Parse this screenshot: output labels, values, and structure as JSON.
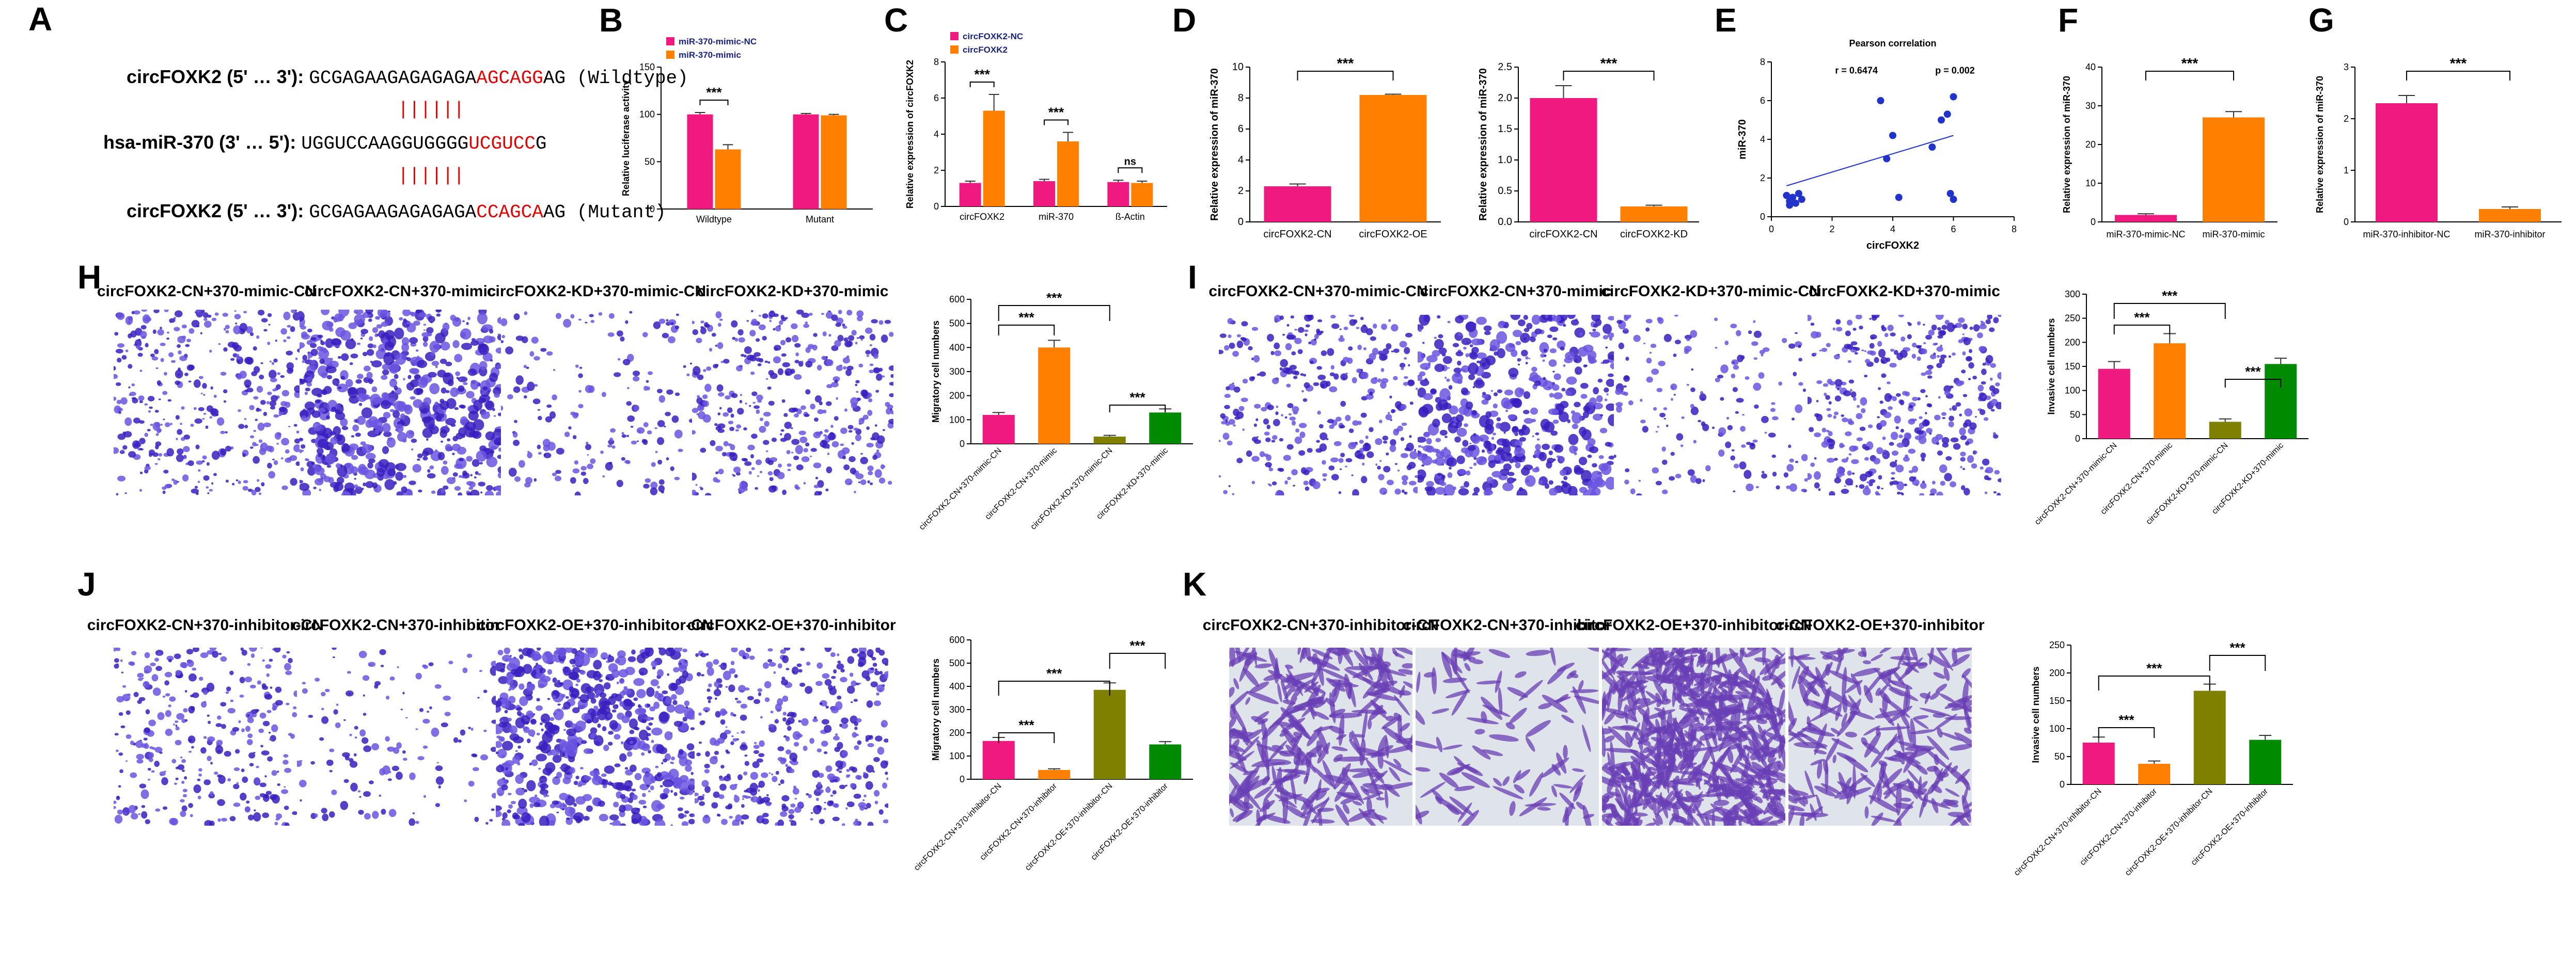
{
  "panel_letters": [
    "A",
    "B",
    "C",
    "D",
    "E",
    "F",
    "G",
    "H",
    "I",
    "J",
    "K"
  ],
  "panelA": {
    "line1_prefix": "circFOXK2 (5' … 3'): ",
    "line1_seq_a": "GCGAGAAGAGAGAGA",
    "line1_seq_hl": "AGCAGG",
    "line1_seq_b": "AG (Wildtype)",
    "pairs1": "||||||",
    "line2_prefix": "hsa-miR-370 (3' … 5'): ",
    "line2_seq_a": "UGGUCCAAGGUGGGG",
    "line2_seq_hl": "UCGUCC",
    "line2_seq_b": "G",
    "pairs2": "||||||",
    "line3_prefix": "circFOXK2 (5' … 3'): ",
    "line3_seq_a": "GCGAGAAGAGAGAGA",
    "line3_seq_hl": "CCAGCA",
    "line3_seq_b": "AG (Mutant)"
  },
  "colors": {
    "pink": "#f0197f",
    "orange": "#ff8000",
    "olive": "#808000",
    "green": "#008a00",
    "blue": "#2233cc",
    "stain": "#5a2fd0"
  },
  "chart_data": [
    {
      "id": "B",
      "type": "bar",
      "ylabel": "Relative luciferase activity",
      "categories": [
        "Wildtype",
        "Mutant"
      ],
      "series": [
        {
          "name": "miR-370-mimic-NC",
          "values": [
            100,
            100
          ],
          "errors": [
            2,
            1
          ]
        },
        {
          "name": "miR-370-mimic",
          "values": [
            63,
            99
          ],
          "errors": [
            5,
            1
          ]
        }
      ],
      "yticks": [
        "0",
        "50",
        "100",
        "150"
      ],
      "ylim": [
        0,
        150
      ],
      "annotations": [
        "***"
      ],
      "legend": "top"
    },
    {
      "id": "C",
      "type": "bar",
      "ylabel": "Relative expression of circFOXK2",
      "categories": [
        "circFOXK2",
        "miR-370",
        "ß-Actin"
      ],
      "series": [
        {
          "name": "circFOXK2-NC",
          "values": [
            1.3,
            1.4,
            1.35
          ],
          "errors": [
            0.1,
            0.1,
            0.1
          ]
        },
        {
          "name": "circFOXK2",
          "values": [
            5.3,
            3.6,
            1.3
          ],
          "errors": [
            0.9,
            0.5,
            0.1
          ]
        }
      ],
      "yticks": [
        "0",
        "2",
        "4",
        "6",
        "8"
      ],
      "ylim": [
        0,
        8
      ],
      "annotations": [
        "***",
        "***",
        "ns"
      ],
      "legend": "top"
    },
    {
      "id": "D1",
      "type": "bar",
      "ylabel": "Relative expression of miR-370",
      "categories": [
        "circFOXK2-CN",
        "circFOXK2-OE"
      ],
      "values": [
        2.3,
        8.2
      ],
      "errors": [
        0.15,
        0.05
      ],
      "yticks": [
        "0",
        "2",
        "4",
        "6",
        "8",
        "10"
      ],
      "ylim": [
        0,
        10
      ],
      "annotations": [
        "***"
      ]
    },
    {
      "id": "D2",
      "type": "bar",
      "ylabel": "Relative expression of miR-370",
      "categories": [
        "circFOXK2-CN",
        "circFOXK2-KD"
      ],
      "values": [
        2.0,
        0.25
      ],
      "errors": [
        0.2,
        0.02
      ],
      "yticks": [
        "0.0",
        "0.5",
        "1.0",
        "1.5",
        "2.0",
        "2.5"
      ],
      "ylim": [
        0,
        2.5
      ],
      "annotations": [
        "***"
      ]
    },
    {
      "id": "E",
      "type": "scatter",
      "title": "Pearson correlation",
      "xlabel": "circFOXK2",
      "ylabel": "miR-370",
      "r_text": "r = 0.6474",
      "p_text": "p = 0.002",
      "x": [
        0.5,
        0.6,
        0.7,
        0.8,
        0.9,
        1.0,
        0.6,
        3.6,
        3.8,
        4.0,
        4.2,
        5.3,
        5.6,
        5.8,
        6.0,
        5.9,
        6.0
      ],
      "y": [
        1.1,
        0.8,
        1.0,
        0.7,
        1.2,
        0.9,
        0.6,
        6.0,
        3.0,
        4.2,
        1.0,
        3.6,
        5.0,
        5.3,
        6.2,
        1.2,
        0.9
      ],
      "trend": [
        [
          0.5,
          1.6
        ],
        [
          6.0,
          4.2
        ]
      ],
      "xticks": [
        "0",
        "2",
        "4",
        "6",
        "8"
      ],
      "yticks": [
        "0",
        "2",
        "4",
        "6",
        "8"
      ],
      "xlim": [
        0,
        8
      ],
      "ylim": [
        0,
        8
      ]
    },
    {
      "id": "F",
      "type": "bar",
      "ylabel": "Relative expression of miR-370",
      "categories": [
        "miR-370-mimic-NC",
        "miR-370-mimic"
      ],
      "values": [
        1.8,
        27
      ],
      "errors": [
        0.3,
        1.5
      ],
      "yticks": [
        "0",
        "10",
        "20",
        "30",
        "40"
      ],
      "ylim": [
        0,
        40
      ],
      "annotations": [
        "***"
      ]
    },
    {
      "id": "G",
      "type": "bar",
      "ylabel": "Relative expression of miR-370",
      "categories": [
        "miR-370-inhibitor-NC",
        "miR-370-inhibitor"
      ],
      "values": [
        2.3,
        0.25
      ],
      "errors": [
        0.15,
        0.04
      ],
      "yticks": [
        "0",
        "1",
        "2",
        "3"
      ],
      "ylim": [
        0,
        3
      ],
      "annotations": [
        "***"
      ]
    },
    {
      "id": "H",
      "type": "bar",
      "ylabel": "Migratory cell numbers",
      "categories": [
        "circFOXK2-CN+370-mimic-CN",
        "circFOXK2-CN+370-mimic",
        "circFOXK2-KD+370-mimic-CN",
        "circFOXK2-KD+370-mimic"
      ],
      "values": [
        120,
        400,
        30,
        130
      ],
      "errors": [
        10,
        30,
        5,
        15
      ],
      "yticks": [
        "0",
        "100",
        "200",
        "300",
        "400",
        "500",
        "600"
      ],
      "ylim": [
        0,
        600
      ],
      "annotations": [
        "***",
        "***",
        "***"
      ]
    },
    {
      "id": "I",
      "type": "bar",
      "ylabel": "Invasive cell numbers",
      "categories": [
        "circFOXK2-CN+370-mimic-CN",
        "circFOXK2-CN+370-mimic",
        "circFOXK2-KD+370-mimic-CN",
        "circFOXK2-KD+370-mimic"
      ],
      "values": [
        145,
        198,
        35,
        155
      ],
      "errors": [
        15,
        20,
        6,
        12
      ],
      "yticks": [
        "0",
        "50",
        "100",
        "150",
        "200",
        "250",
        "300"
      ],
      "ylim": [
        0,
        300
      ],
      "annotations": [
        "***",
        "***",
        "***"
      ]
    },
    {
      "id": "J",
      "type": "bar",
      "ylabel": "Migratory cell numbers",
      "categories": [
        "circFOXK2-CN+370-inhibitor-CN",
        "circFOXK2-CN+370-inhibitor",
        "circFOXK2-OE+370-inhibitor-CN",
        "circFOXK2-OE+370-inhibitor"
      ],
      "values": [
        165,
        40,
        385,
        150
      ],
      "errors": [
        15,
        5,
        30,
        12
      ],
      "yticks": [
        "0",
        "100",
        "200",
        "300",
        "400",
        "500",
        "600"
      ],
      "ylim": [
        0,
        600
      ],
      "annotations": [
        "***",
        "***",
        "***"
      ]
    },
    {
      "id": "K",
      "type": "bar",
      "ylabel": "Invasive cell numbers",
      "categories": [
        "circFOXK2-CN+370-inhibitor-CN",
        "circFOXK2-CN+370-inhibitor",
        "circFOXK2-OE+370-inhibitor-CN",
        "circFOXK2-OE+370-inhibitor"
      ],
      "values": [
        75,
        37,
        168,
        80
      ],
      "errors": [
        10,
        5,
        12,
        8
      ],
      "yticks": [
        "0",
        "50",
        "100",
        "150",
        "200",
        "250"
      ],
      "ylim": [
        0,
        250
      ],
      "annotations": [
        "***",
        "***",
        "***"
      ]
    }
  ],
  "images": {
    "H": [
      "circFOXK2-CN+370-mimic-CN",
      "circFOXK2-CN+370-mimic",
      "circFOXK2-KD+370-mimic-CN",
      "circFOXK2-KD+370-mimic"
    ],
    "I": [
      "circFOXK2-CN+370-mimic-CN",
      "circFOXK2-CN+370-mimic",
      "circFOXK2-KD+370-mimic-CN",
      "circFOXK2-KD+370-mimic"
    ],
    "J": [
      "circFOXK2-CN+370-inhibitor-CN",
      "circFOXK2-CN+370-inhibitor",
      "circFOXK2-OE+370-inhibitor-CN",
      "circFOXK2-OE+370-inhibitor"
    ],
    "K": [
      "circFOXK2-CN+370-inhibitor-CN",
      "circFOXK2-CN+370-inhibitor",
      "circFOXK2-OE+370-inhibitor-CN",
      "circFOXK2-OE+370-inhibitor"
    ]
  },
  "image_density": {
    "H": [
      0.55,
      0.95,
      0.25,
      0.6
    ],
    "I": [
      0.5,
      0.75,
      0.25,
      0.6
    ],
    "J": [
      0.45,
      0.2,
      0.95,
      0.6
    ],
    "K": [
      0.45,
      0.15,
      0.85,
      0.35
    ]
  }
}
